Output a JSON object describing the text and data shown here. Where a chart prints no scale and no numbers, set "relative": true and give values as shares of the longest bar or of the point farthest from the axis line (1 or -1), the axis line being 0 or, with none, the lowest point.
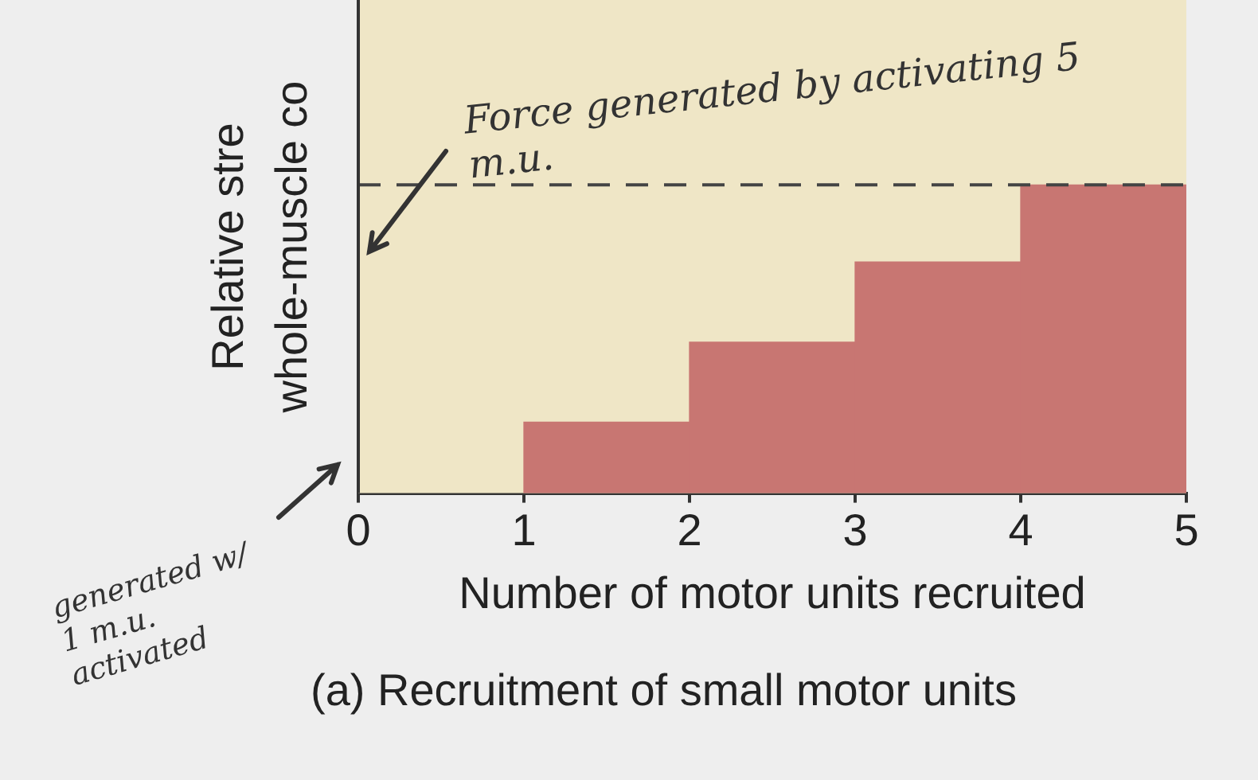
{
  "chart_data": {
    "type": "bar",
    "relative": true,
    "ylabel": "Relative stre\nwhole-muscle co",
    "xlabel": "Number of motor units recruited",
    "x": [
      1.5,
      2.5,
      3.5,
      4.5
    ],
    "values": [
      0.23,
      0.49,
      0.75,
      1
    ],
    "color": "#c87672",
    "xlim": [
      0,
      5
    ],
    "xticks": [
      0,
      1,
      2,
      3,
      4,
      5
    ],
    "grid": false,
    "legend": false,
    "ref_lines": [
      {
        "axis": "y",
        "value": 1,
        "line_style": "dashed",
        "color": "#444444"
      }
    ],
    "annotations": [
      "Force generated by activating 5 m.u.",
      "generated w/ 1 m.u. activated",
      "(a) Recruitment of small motor units"
    ]
  }
}
